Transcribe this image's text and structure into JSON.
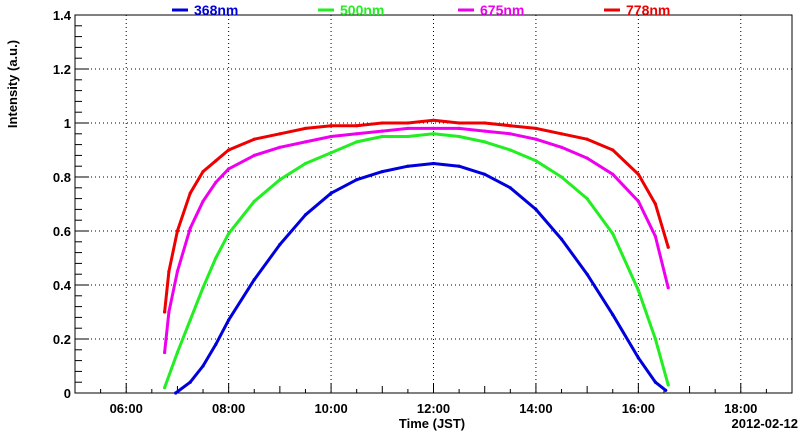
{
  "chart_data": {
    "type": "line",
    "xlabel": "Time (JST)",
    "ylabel": "Intensity (a.u.)",
    "date_label": "2012-02-12",
    "xlim": [
      "05:00",
      "19:00"
    ],
    "ylim": [
      0,
      1.4
    ],
    "x_ticks": [
      "06:00",
      "08:00",
      "10:00",
      "12:00",
      "14:00",
      "16:00",
      "18:00"
    ],
    "y_ticks": [
      "0",
      "0.2",
      "0.4",
      "0.6",
      "0.8",
      "1",
      "1.2",
      "1.4"
    ],
    "grid": true,
    "legend_position": "top",
    "series": [
      {
        "name": "368nm",
        "color": "#0000dd",
        "x": [
          "06:58",
          "07:15",
          "07:30",
          "07:45",
          "08:00",
          "08:30",
          "09:00",
          "09:30",
          "10:00",
          "10:30",
          "11:00",
          "11:30",
          "12:00",
          "12:30",
          "13:00",
          "13:30",
          "14:00",
          "14:30",
          "15:00",
          "15:30",
          "16:00",
          "16:20",
          "16:32"
        ],
        "y": [
          0.0,
          0.04,
          0.1,
          0.18,
          0.27,
          0.42,
          0.55,
          0.66,
          0.74,
          0.79,
          0.82,
          0.84,
          0.85,
          0.84,
          0.81,
          0.76,
          0.68,
          0.57,
          0.44,
          0.29,
          0.13,
          0.04,
          0.01
        ]
      },
      {
        "name": "500nm",
        "color": "#22ee22",
        "x": [
          "06:45",
          "07:00",
          "07:15",
          "07:30",
          "07:45",
          "08:00",
          "08:30",
          "09:00",
          "09:30",
          "10:00",
          "10:30",
          "11:00",
          "11:30",
          "12:00",
          "12:30",
          "13:00",
          "13:30",
          "14:00",
          "14:30",
          "15:00",
          "15:30",
          "16:00",
          "16:20",
          "16:35"
        ],
        "y": [
          0.02,
          0.15,
          0.27,
          0.39,
          0.5,
          0.59,
          0.71,
          0.79,
          0.85,
          0.89,
          0.93,
          0.95,
          0.95,
          0.96,
          0.95,
          0.93,
          0.9,
          0.86,
          0.8,
          0.72,
          0.59,
          0.38,
          0.2,
          0.03
        ]
      },
      {
        "name": "675nm",
        "color": "#ee00ee",
        "x": [
          "06:45",
          "06:50",
          "07:00",
          "07:15",
          "07:30",
          "07:45",
          "08:00",
          "08:30",
          "09:00",
          "09:30",
          "10:00",
          "10:30",
          "11:00",
          "11:30",
          "12:00",
          "12:30",
          "13:00",
          "13:30",
          "14:00",
          "14:30",
          "15:00",
          "15:30",
          "16:00",
          "16:20",
          "16:35"
        ],
        "y": [
          0.15,
          0.3,
          0.45,
          0.61,
          0.71,
          0.78,
          0.83,
          0.88,
          0.91,
          0.93,
          0.95,
          0.96,
          0.97,
          0.98,
          0.98,
          0.98,
          0.97,
          0.96,
          0.94,
          0.91,
          0.87,
          0.81,
          0.71,
          0.58,
          0.39
        ]
      },
      {
        "name": "778nm",
        "color": "#ee0000",
        "x": [
          "06:45",
          "06:50",
          "07:00",
          "07:15",
          "07:30",
          "07:45",
          "08:00",
          "08:30",
          "09:00",
          "09:30",
          "10:00",
          "10:30",
          "11:00",
          "11:30",
          "12:00",
          "12:30",
          "13:00",
          "13:30",
          "14:00",
          "14:30",
          "15:00",
          "15:30",
          "16:00",
          "16:20",
          "16:35"
        ],
        "y": [
          0.3,
          0.45,
          0.6,
          0.74,
          0.82,
          0.86,
          0.9,
          0.94,
          0.96,
          0.98,
          0.99,
          0.99,
          1.0,
          1.0,
          1.01,
          1.0,
          1.0,
          0.99,
          0.98,
          0.96,
          0.94,
          0.9,
          0.81,
          0.7,
          0.54
        ]
      }
    ]
  }
}
